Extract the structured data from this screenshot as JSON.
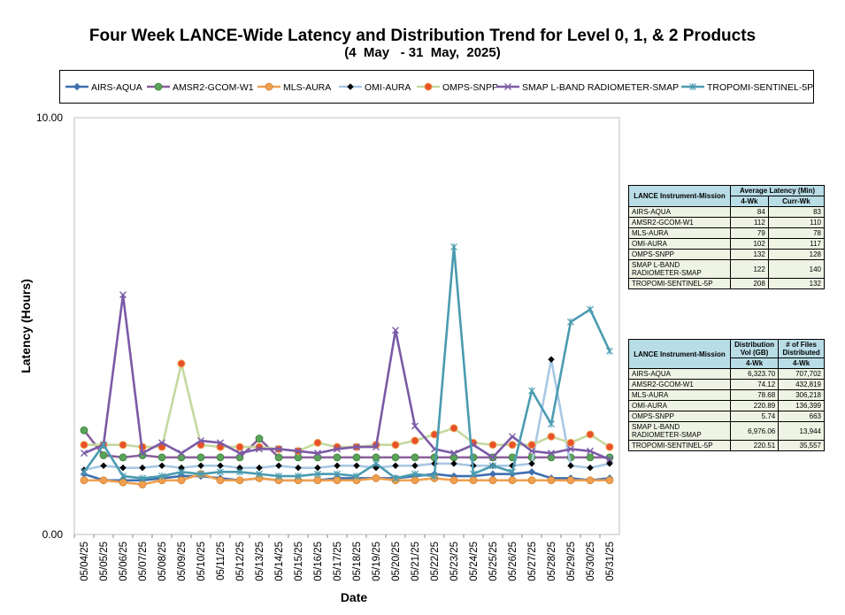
{
  "title": "Four Week LANCE-Wide Latency and Distribution Trend for Level 0, 1, & 2 Products",
  "subtitle": "(4  May   - 31  May,  2025)",
  "chart_data": {
    "type": "line",
    "xlabel": "Date",
    "ylabel": "Latency (Hours)",
    "ylim": [
      0,
      10
    ],
    "y_ticks": [
      "0.00",
      "10.00"
    ],
    "categories": [
      "05/04/25",
      "05/05/25",
      "05/06/25",
      "05/07/25",
      "05/08/25",
      "05/09/25",
      "05/10/25",
      "05/11/25",
      "05/12/25",
      "05/13/25",
      "05/14/25",
      "05/15/25",
      "05/16/25",
      "05/17/25",
      "05/18/25",
      "05/19/25",
      "05/20/25",
      "05/21/25",
      "05/22/25",
      "05/23/25",
      "05/24/25",
      "05/25/25",
      "05/26/25",
      "05/27/25",
      "05/28/25",
      "05/29/25",
      "05/30/25",
      "05/31/25"
    ],
    "grid": false,
    "legend_position": "top",
    "series": [
      {
        "name": "AIRS-AQUA",
        "color": "#3f6fb0",
        "marker": "diamond",
        "values": [
          1.45,
          1.3,
          1.3,
          1.3,
          1.35,
          1.4,
          1.4,
          1.35,
          1.3,
          1.35,
          1.3,
          1.3,
          1.3,
          1.35,
          1.35,
          1.35,
          1.35,
          1.4,
          1.45,
          1.4,
          1.4,
          1.45,
          1.45,
          1.5,
          1.35,
          1.35,
          1.3,
          1.35
        ]
      },
      {
        "name": "AMSR2-GCOM-W1",
        "color": "#8b5e9c",
        "marker": "circle-green",
        "values": [
          2.5,
          1.9,
          1.85,
          1.9,
          1.85,
          1.85,
          1.85,
          1.85,
          1.85,
          2.3,
          1.85,
          1.85,
          1.85,
          1.85,
          1.85,
          1.85,
          1.85,
          1.85,
          1.85,
          1.85,
          1.85,
          1.85,
          1.85,
          1.85,
          1.85,
          1.85,
          1.85,
          1.85
        ]
      },
      {
        "name": "MLS-AURA",
        "color": "#f0a050",
        "marker": "circle-orange",
        "values": [
          1.3,
          1.3,
          1.25,
          1.2,
          1.3,
          1.3,
          1.45,
          1.3,
          1.3,
          1.35,
          1.3,
          1.3,
          1.3,
          1.3,
          1.3,
          1.35,
          1.3,
          1.3,
          1.35,
          1.3,
          1.3,
          1.3,
          1.3,
          1.3,
          1.3,
          1.3,
          1.3,
          1.3
        ]
      },
      {
        "name": "OMI-AURA",
        "color": "#a8c8e4",
        "marker": "diamond-black",
        "values": [
          1.55,
          1.65,
          1.6,
          1.6,
          1.65,
          1.6,
          1.65,
          1.65,
          1.6,
          1.6,
          1.65,
          1.6,
          1.6,
          1.65,
          1.65,
          1.6,
          1.65,
          1.65,
          1.7,
          1.7,
          1.65,
          1.65,
          1.65,
          1.7,
          4.2,
          1.65,
          1.6,
          1.7
        ]
      },
      {
        "name": "OMPS-SNPP",
        "color": "#c4d9a0",
        "marker": "circle-red",
        "values": [
          2.15,
          2.15,
          2.15,
          2.1,
          2.1,
          4.1,
          2.15,
          2.1,
          2.1,
          2.1,
          2.05,
          2.0,
          2.2,
          2.1,
          2.1,
          2.15,
          2.15,
          2.25,
          2.4,
          2.55,
          2.2,
          2.15,
          2.15,
          2.15,
          2.35,
          2.2,
          2.4,
          2.1
        ]
      },
      {
        "name": "SMAP L-BAND RADIOMETER-SMAP",
        "color": "#7b5aa6",
        "marker": "x",
        "values": [
          1.95,
          2.15,
          5.75,
          1.95,
          2.2,
          1.95,
          2.25,
          2.2,
          1.95,
          2.05,
          2.05,
          2.0,
          1.95,
          2.05,
          2.1,
          2.1,
          4.9,
          2.6,
          2.05,
          1.95,
          2.15,
          1.85,
          2.35,
          2.0,
          1.95,
          2.05,
          2.0,
          1.8
        ]
      },
      {
        "name": "TROPOMI-SENTINEL-5P",
        "color": "#4a9bb0",
        "marker": "asterisk",
        "values": [
          1.5,
          2.15,
          1.4,
          1.35,
          1.4,
          1.5,
          1.45,
          1.5,
          1.5,
          1.45,
          1.4,
          1.4,
          1.45,
          1.45,
          1.4,
          1.7,
          1.35,
          1.45,
          1.4,
          6.9,
          1.45,
          1.65,
          1.5,
          3.45,
          2.65,
          5.1,
          5.4,
          4.4
        ]
      }
    ]
  },
  "table1": {
    "header_col1": "LANCE Instrument-Mission",
    "header_col2": "Average Latency (Min)",
    "sub_a": "4-Wk",
    "sub_b": "Curr-Wk",
    "rows": [
      {
        "name": "AIRS-AQUA",
        "a": "84",
        "b": "83"
      },
      {
        "name": "AMSR2-GCOM-W1",
        "a": "112",
        "b": "110"
      },
      {
        "name": "MLS-AURA",
        "a": "79",
        "b": "78"
      },
      {
        "name": "OMI-AURA",
        "a": "102",
        "b": "117"
      },
      {
        "name": "OMPS-SNPP",
        "a": "132",
        "b": "128"
      },
      {
        "name": "SMAP L-BAND RADIOMETER-SMAP",
        "a": "122",
        "b": "140"
      },
      {
        "name": "TROPOMI-SENTINEL-5P",
        "a": "208",
        "b": "132"
      }
    ]
  },
  "table2": {
    "header_col1": "LANCE Instrument-Mission",
    "header_col2": "Distribution Vol (GB)",
    "header_col3": "# of Files Distributed",
    "sub_a": "4-Wk",
    "sub_b": "4-Wk",
    "rows": [
      {
        "name": "AIRS-AQUA",
        "a": "6,323.70",
        "b": "707,702"
      },
      {
        "name": "AMSR2-GCOM-W1",
        "a": "74.12",
        "b": "432,819"
      },
      {
        "name": "MLS-AURA",
        "a": "78.68",
        "b": "306,218"
      },
      {
        "name": "OMI-AURA",
        "a": "220.89",
        "b": "136,399"
      },
      {
        "name": "OMPS-SNPP",
        "a": "5.74",
        "b": "663"
      },
      {
        "name": "SMAP L-BAND RADIOMETER-SMAP",
        "a": "6,976.06",
        "b": "13,944"
      },
      {
        "name": "TROPOMI-SENTINEL-5P",
        "a": "220.51",
        "b": "35,557"
      }
    ]
  }
}
